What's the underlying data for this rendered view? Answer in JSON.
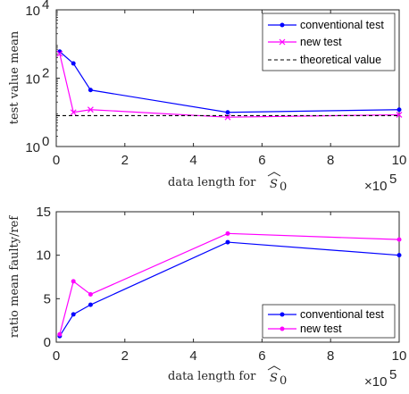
{
  "chart_data": [
    {
      "type": "line",
      "ylabel": "test value mean",
      "xlabel": "data length for $\\widehat{S}_0$",
      "x_multiplier": "×10",
      "x_multiplier_exp": "5",
      "x_scale": "linear",
      "y_scale": "log",
      "xlim": [
        0,
        10
      ],
      "ylim": [
        1,
        10000
      ],
      "xticks": [
        "0",
        "2",
        "4",
        "6",
        "8",
        "10"
      ],
      "yticks": [
        "10",
        "10",
        "10"
      ],
      "yticks_exp": [
        "0",
        "2",
        "4"
      ],
      "legend_position": "top-right",
      "series": [
        {
          "name": "conventional test",
          "color": "#0000ff",
          "marker": "dot",
          "line": "solid",
          "x": [
            0.1,
            0.5,
            1,
            5,
            10
          ],
          "y": [
            600,
            270,
            45,
            10,
            12
          ]
        },
        {
          "name": "new test",
          "color": "#ff00ff",
          "marker": "x",
          "line": "solid",
          "x": [
            0.1,
            0.5,
            1,
            5,
            10
          ],
          "y": [
            520,
            10,
            12,
            7.2,
            8.5
          ]
        },
        {
          "name": "theoretical value",
          "color": "#000000",
          "marker": "none",
          "line": "dashed",
          "x": [
            0,
            10
          ],
          "y": [
            8,
            8
          ]
        }
      ]
    },
    {
      "type": "line",
      "ylabel": "ratio mean faulty/ref",
      "xlabel": "data length for $\\widehat{S}_0$",
      "x_multiplier": "×10",
      "x_multiplier_exp": "5",
      "xlim": [
        0,
        10
      ],
      "ylim": [
        0,
        15
      ],
      "xticks": [
        "0",
        "2",
        "4",
        "6",
        "8",
        "10"
      ],
      "yticks": [
        "0",
        "5",
        "10",
        "15"
      ],
      "legend_position": "bottom-right",
      "series": [
        {
          "name": "conventional test",
          "color": "#0000ff",
          "marker": "dot",
          "line": "solid",
          "x": [
            0.1,
            0.5,
            1,
            5,
            10
          ],
          "y": [
            0.7,
            3.2,
            4.3,
            11.5,
            10.0
          ]
        },
        {
          "name": "new test",
          "color": "#ff00ff",
          "marker": "dot",
          "line": "solid",
          "x": [
            0.1,
            0.5,
            1,
            5,
            10
          ],
          "y": [
            0.9,
            7.0,
            5.5,
            12.5,
            11.8
          ]
        }
      ]
    }
  ]
}
